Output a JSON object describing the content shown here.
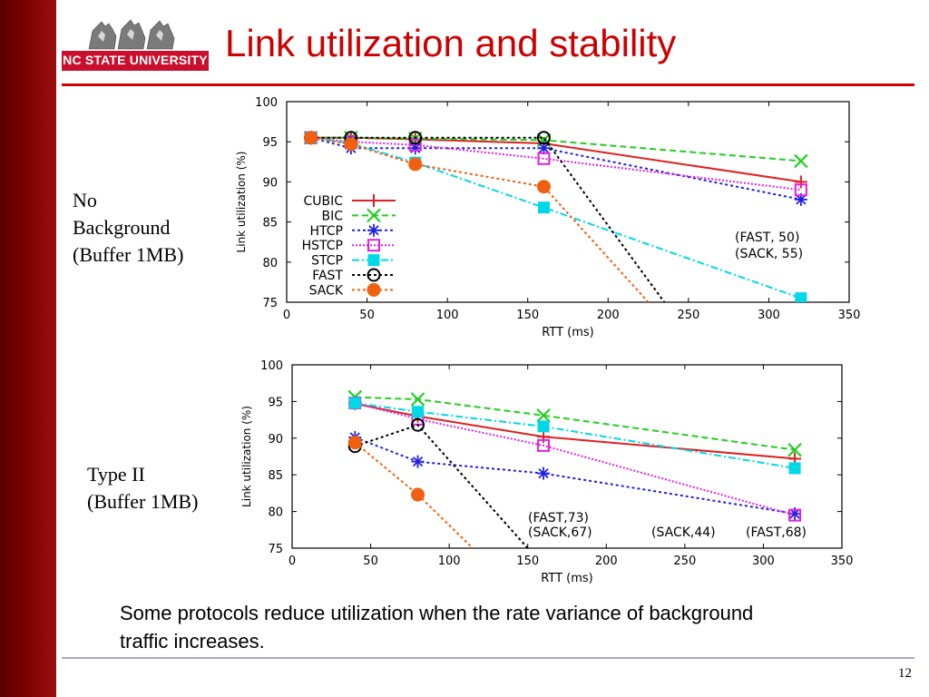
{
  "header": {
    "title": "Link utilization and stability",
    "logo_text": "NC STATE UNIVERSITY"
  },
  "labels": {
    "chart1": [
      "No",
      "Background",
      "(Buffer 1MB)"
    ],
    "chart2": [
      "Type II",
      "(Buffer 1MB)"
    ]
  },
  "caption": "Some protocols reduce utilization when the rate variance of background traffic increases.",
  "page_number": "12",
  "colors": {
    "title": "#cc0000",
    "accent": "#d40000"
  },
  "chart_data": [
    {
      "type": "line",
      "xlabel": "RTT (ms)",
      "ylabel": "Link utilization (%)",
      "xlim": [
        0,
        350
      ],
      "ylim": [
        75,
        100
      ],
      "xticks": [
        0,
        50,
        100,
        150,
        200,
        250,
        300,
        350
      ],
      "yticks": [
        75,
        80,
        85,
        90,
        95,
        100
      ],
      "legend_position": "center-left",
      "series": [
        {
          "name": "CUBIC",
          "color": "#e02020",
          "dash": "",
          "marker": "plus",
          "x": [
            15,
            40,
            80,
            160,
            320
          ],
          "y": [
            95.5,
            95.5,
            95.3,
            94.8,
            90.0
          ]
        },
        {
          "name": "BIC",
          "color": "#20d020",
          "dash": "7,4",
          "marker": "x",
          "x": [
            15,
            40,
            80,
            160,
            320
          ],
          "y": [
            95.5,
            95.5,
            95.4,
            95.2,
            92.6
          ]
        },
        {
          "name": "HTCP",
          "color": "#2020e0",
          "dash": "3,3",
          "marker": "star",
          "x": [
            15,
            40,
            80,
            160,
            320
          ],
          "y": [
            95.5,
            94.2,
            94.2,
            94.2,
            87.8
          ]
        },
        {
          "name": "HSTCP",
          "color": "#e020e0",
          "dash": "2,2",
          "marker": "square",
          "x": [
            15,
            40,
            80,
            160,
            320
          ],
          "y": [
            95.5,
            95.0,
            94.6,
            92.9,
            89.0
          ]
        },
        {
          "name": "STCP",
          "color": "#00d8e8",
          "dash": "8,3,2,3",
          "marker": "filled-square",
          "x": [
            15,
            40,
            80,
            160,
            320
          ],
          "y": [
            95.5,
            94.8,
            92.4,
            86.8,
            75.5
          ]
        },
        {
          "name": "FAST",
          "color": "#000000",
          "dash": "3,3",
          "marker": "circle",
          "x": [
            15,
            40,
            80,
            160,
            235
          ],
          "y": [
            95.5,
            95.5,
            95.5,
            95.5,
            75.0
          ]
        },
        {
          "name": "SACK",
          "color": "#f06010",
          "dash": "3,3",
          "marker": "filled-circle",
          "x": [
            15,
            40,
            80,
            160,
            225
          ],
          "y": [
            95.5,
            94.7,
            92.2,
            89.4,
            75.0
          ]
        }
      ],
      "annotations": [
        "(FAST, 50)",
        "(SACK, 55)"
      ]
    },
    {
      "type": "line",
      "xlabel": "RTT (ms)",
      "ylabel": "Link utilization (%)",
      "xlim": [
        0,
        350
      ],
      "ylim": [
        75,
        100
      ],
      "xticks": [
        0,
        50,
        100,
        150,
        200,
        250,
        300,
        350
      ],
      "yticks": [
        75,
        80,
        85,
        90,
        95,
        100
      ],
      "series": [
        {
          "name": "CUBIC",
          "color": "#e02020",
          "dash": "",
          "marker": "plus",
          "x": [
            40,
            80,
            160,
            320
          ],
          "y": [
            94.7,
            93.0,
            90.2,
            87.2
          ]
        },
        {
          "name": "BIC",
          "color": "#20d020",
          "dash": "7,4",
          "marker": "x",
          "x": [
            40,
            80,
            160,
            320
          ],
          "y": [
            95.6,
            95.3,
            93.1,
            88.4
          ]
        },
        {
          "name": "HTCP",
          "color": "#2020e0",
          "dash": "3,3",
          "marker": "star",
          "x": [
            40,
            80,
            160,
            320
          ],
          "y": [
            90.1,
            86.8,
            85.2,
            79.7
          ]
        },
        {
          "name": "HSTCP",
          "color": "#e020e0",
          "dash": "2,2",
          "marker": "square",
          "x": [
            40,
            80,
            160,
            320
          ],
          "y": [
            94.8,
            92.6,
            89.0,
            79.5
          ]
        },
        {
          "name": "STCP",
          "color": "#00d8e8",
          "dash": "8,3,2,3",
          "marker": "filled-square",
          "x": [
            40,
            80,
            160,
            320
          ],
          "y": [
            94.8,
            93.6,
            91.6,
            85.9
          ]
        },
        {
          "name": "FAST",
          "color": "#000000",
          "dash": "3,3",
          "marker": "circle",
          "x": [
            40,
            80,
            150
          ],
          "y": [
            88.9,
            91.8,
            75.0
          ]
        },
        {
          "name": "SACK",
          "color": "#f06010",
          "dash": "3,3",
          "marker": "filled-circle",
          "x": [
            40,
            80,
            115
          ],
          "y": [
            89.4,
            82.3,
            75.0
          ]
        }
      ],
      "annotations": [
        "(FAST,73)",
        "(SACK,67)",
        "(SACK,44)",
        "(FAST,68)"
      ]
    }
  ]
}
